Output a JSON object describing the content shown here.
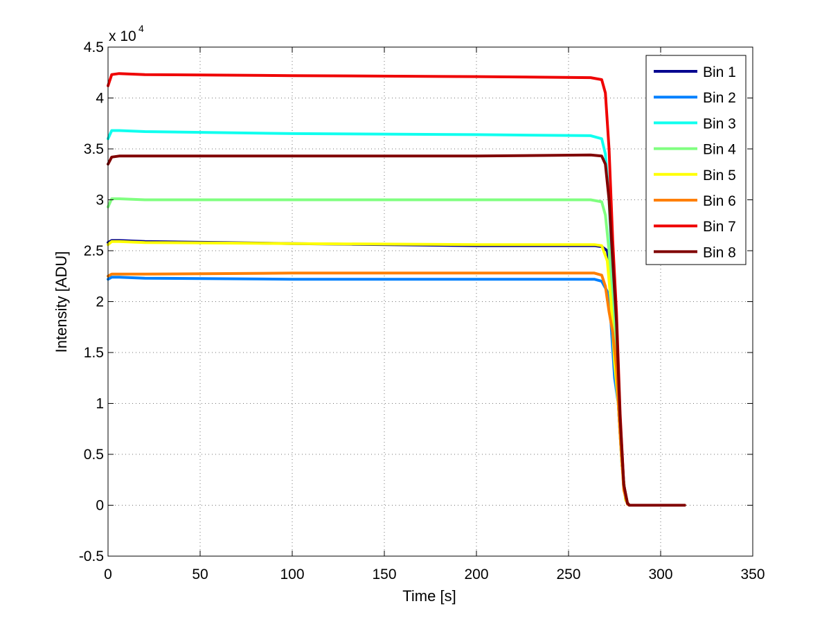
{
  "chart_data": {
    "type": "line",
    "title": "",
    "xlabel": "Time [s]",
    "ylabel": "Intensity [ADU]",
    "y_multiplier_label": "x 10",
    "y_multiplier_exponent": "4",
    "xlim": [
      0,
      350
    ],
    "ylim": [
      -0.5,
      4.5
    ],
    "y_scale": 10000,
    "xticks": [
      "0",
      "50",
      "100",
      "150",
      "200",
      "250",
      "300",
      "350"
    ],
    "yticks": [
      "-0.5",
      "0",
      "0.5",
      "1",
      "1.5",
      "2",
      "2.5",
      "3",
      "3.5",
      "4",
      "4.5"
    ],
    "grid": true,
    "legend_position": "top-right",
    "series": [
      {
        "name": "Bin 1",
        "color": "#00008f",
        "x": [
          0,
          2,
          6,
          20,
          100,
          200,
          264,
          268,
          271,
          273,
          275,
          277,
          279,
          281,
          283,
          300,
          313
        ],
        "y": [
          2.58,
          2.6,
          2.6,
          2.59,
          2.57,
          2.55,
          2.55,
          2.54,
          2.5,
          2.3,
          1.6,
          1.0,
          0.4,
          0.05,
          0,
          0,
          0
        ]
      },
      {
        "name": "Bin 2",
        "color": "#0080ff",
        "x": [
          0,
          2,
          6,
          20,
          100,
          200,
          264,
          268,
          271,
          273,
          275,
          277,
          279,
          281,
          283,
          300,
          313
        ],
        "y": [
          2.22,
          2.24,
          2.24,
          2.23,
          2.22,
          2.22,
          2.22,
          2.2,
          2.1,
          1.8,
          1.25,
          1.0,
          0.4,
          0.05,
          0,
          0,
          0
        ]
      },
      {
        "name": "Bin 3",
        "color": "#10ffef",
        "x": [
          0,
          2,
          6,
          20,
          100,
          200,
          262,
          268,
          270,
          272,
          274,
          276,
          278,
          280,
          282,
          283,
          300,
          313
        ],
        "y": [
          3.6,
          3.68,
          3.68,
          3.67,
          3.65,
          3.64,
          3.63,
          3.6,
          3.45,
          3.0,
          2.2,
          1.6,
          0.8,
          0.2,
          0.02,
          0,
          0,
          0
        ]
      },
      {
        "name": "Bin 4",
        "color": "#80ff80",
        "x": [
          0,
          2,
          6,
          20,
          100,
          200,
          262,
          268,
          270,
          272,
          274,
          276,
          278,
          280,
          282,
          283,
          300,
          313
        ],
        "y": [
          2.93,
          3.01,
          3.01,
          3.0,
          3.0,
          3.0,
          3.0,
          2.98,
          2.85,
          2.5,
          1.9,
          1.4,
          0.7,
          0.15,
          0.01,
          0,
          0,
          0
        ]
      },
      {
        "name": "Bin 5",
        "color": "#ffff00",
        "x": [
          0,
          2,
          6,
          20,
          100,
          200,
          264,
          268,
          271,
          273,
          275,
          277,
          279,
          281,
          283,
          300,
          313
        ],
        "y": [
          2.56,
          2.59,
          2.59,
          2.58,
          2.57,
          2.56,
          2.56,
          2.55,
          2.4,
          2.0,
          1.4,
          1.0,
          0.4,
          0.05,
          0,
          0,
          0
        ]
      },
      {
        "name": "Bin 6",
        "color": "#ff7f00",
        "x": [
          0,
          2,
          6,
          20,
          100,
          200,
          264,
          268,
          270,
          272,
          274,
          276,
          278,
          280,
          282,
          283,
          300,
          313
        ],
        "y": [
          2.25,
          2.27,
          2.27,
          2.27,
          2.28,
          2.28,
          2.28,
          2.26,
          2.15,
          1.9,
          1.7,
          1.35,
          0.7,
          0.15,
          0.01,
          0,
          0,
          0
        ]
      },
      {
        "name": "Bin 7",
        "color": "#ef0000",
        "x": [
          0,
          2,
          6,
          20,
          100,
          200,
          262,
          268,
          270,
          272,
          274,
          276,
          278,
          280,
          282,
          283,
          300,
          313
        ],
        "y": [
          4.12,
          4.23,
          4.24,
          4.23,
          4.22,
          4.21,
          4.2,
          4.18,
          4.05,
          3.5,
          2.6,
          1.9,
          0.9,
          0.2,
          0.02,
          0,
          0,
          0
        ]
      },
      {
        "name": "Bin 8",
        "color": "#800000",
        "x": [
          0,
          2,
          6,
          20,
          100,
          200,
          262,
          268,
          270,
          272,
          274,
          276,
          278,
          280,
          282,
          283,
          300,
          313
        ],
        "y": [
          3.35,
          3.42,
          3.43,
          3.43,
          3.43,
          3.43,
          3.44,
          3.43,
          3.35,
          3.0,
          2.4,
          1.8,
          0.85,
          0.2,
          0.02,
          0,
          0,
          0
        ]
      }
    ]
  }
}
